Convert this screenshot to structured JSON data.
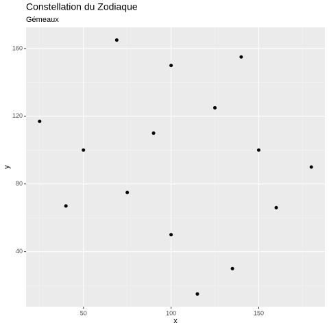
{
  "chart_data": {
    "type": "scatter",
    "title": "Constellation du Zodiaque",
    "subtitle": "Gémeaux",
    "x_label": "x",
    "y_label": "y",
    "series": [
      {
        "color": "#000000",
        "x": [
          25,
          40,
          50,
          69,
          75,
          90,
          100,
          100,
          115,
          125,
          135,
          140,
          150,
          160,
          180
        ],
        "values": [
          117,
          67,
          100,
          165,
          75,
          110,
          150,
          50,
          15,
          125,
          30,
          155,
          100,
          66,
          90
        ]
      }
    ],
    "xlim": [
      17.25,
      187.75
    ],
    "xticks": [
      50,
      100,
      150
    ],
    "xminor": [
      25,
      75,
      125,
      175
    ],
    "ylim": [
      7.5,
      172.5
    ],
    "yticks": [
      40,
      80,
      120,
      160
    ],
    "yminor": [
      20,
      60,
      100,
      140
    ],
    "grid": true
  }
}
